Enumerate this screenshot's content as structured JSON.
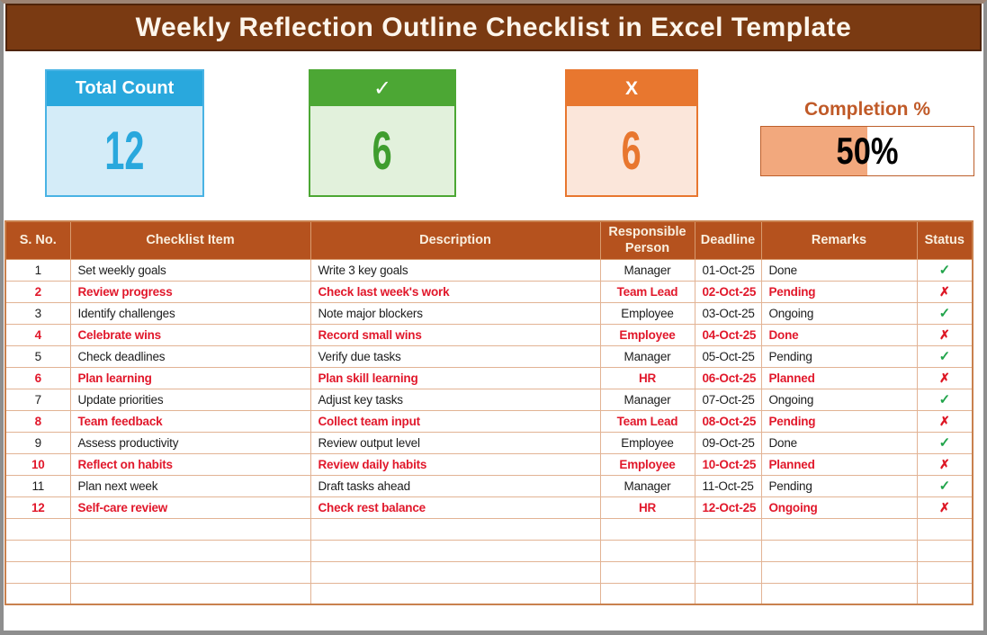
{
  "title": "Weekly Reflection Outline Checklist in Excel Template",
  "summary_cards": [
    {
      "id": "total",
      "label": "Total Count",
      "value": "12",
      "header_color": "#29a8dd",
      "body_color": "#d4ecf8",
      "value_color": "#29a8dd"
    },
    {
      "id": "done",
      "label": "✓",
      "value": "6",
      "header_color": "#4ca734",
      "body_color": "#e2f1dc",
      "value_color": "#3f9d2e"
    },
    {
      "id": "not_done",
      "label": "X",
      "value": "6",
      "header_color": "#e8772f",
      "body_color": "#fbe6da",
      "value_color": "#e8772f"
    }
  ],
  "completion": {
    "label": "Completion %",
    "value": "50%",
    "percent": 50,
    "fill_color": "#f2a87d",
    "label_color": "#c05a28"
  },
  "table": {
    "columns": [
      {
        "label": "S. No."
      },
      {
        "label": "Checklist Item"
      },
      {
        "label": "Description"
      },
      {
        "label": "Responsible Person"
      },
      {
        "label": "Deadline"
      },
      {
        "label": "Remarks"
      },
      {
        "label": "Status"
      }
    ],
    "status_icons": {
      "done": "✓",
      "not_done": "✗"
    },
    "status_colors": {
      "done": "#21a44b",
      "not_done": "#dd1523"
    },
    "rows": [
      {
        "sno": "1",
        "item": "Set weekly goals",
        "description": "Write 3 key goals",
        "person": "Manager",
        "deadline": "01-Oct-25",
        "remarks": "Done",
        "status": "done",
        "emphasized": false
      },
      {
        "sno": "2",
        "item": "Review progress",
        "description": "Check last week's work",
        "person": "Team Lead",
        "deadline": "02-Oct-25",
        "remarks": "Pending",
        "status": "not_done",
        "emphasized": true
      },
      {
        "sno": "3",
        "item": "Identify challenges",
        "description": "Note major blockers",
        "person": "Employee",
        "deadline": "03-Oct-25",
        "remarks": "Ongoing",
        "status": "done",
        "emphasized": false
      },
      {
        "sno": "4",
        "item": "Celebrate wins",
        "description": "Record small wins",
        "person": "Employee",
        "deadline": "04-Oct-25",
        "remarks": "Done",
        "status": "not_done",
        "emphasized": true
      },
      {
        "sno": "5",
        "item": "Check deadlines",
        "description": "Verify due tasks",
        "person": "Manager",
        "deadline": "05-Oct-25",
        "remarks": "Pending",
        "status": "done",
        "emphasized": false
      },
      {
        "sno": "6",
        "item": "Plan learning",
        "description": "Plan skill learning",
        "person": "HR",
        "deadline": "06-Oct-25",
        "remarks": "Planned",
        "status": "not_done",
        "emphasized": true
      },
      {
        "sno": "7",
        "item": "Update priorities",
        "description": "Adjust key tasks",
        "person": "Manager",
        "deadline": "07-Oct-25",
        "remarks": "Ongoing",
        "status": "done",
        "emphasized": false
      },
      {
        "sno": "8",
        "item": "Team feedback",
        "description": "Collect team input",
        "person": "Team Lead",
        "deadline": "08-Oct-25",
        "remarks": "Pending",
        "status": "not_done",
        "emphasized": true
      },
      {
        "sno": "9",
        "item": "Assess productivity",
        "description": "Review output level",
        "person": "Employee",
        "deadline": "09-Oct-25",
        "remarks": "Done",
        "status": "done",
        "emphasized": false
      },
      {
        "sno": "10",
        "item": "Reflect on habits",
        "description": "Review daily habits",
        "person": "Employee",
        "deadline": "10-Oct-25",
        "remarks": "Planned",
        "status": "not_done",
        "emphasized": true
      },
      {
        "sno": "11",
        "item": "Plan next week",
        "description": "Draft tasks ahead",
        "person": "Manager",
        "deadline": "11-Oct-25",
        "remarks": "Pending",
        "status": "done",
        "emphasized": false
      },
      {
        "sno": "12",
        "item": "Self-care review",
        "description": "Check rest balance",
        "person": "HR",
        "deadline": "12-Oct-25",
        "remarks": "Ongoing",
        "status": "not_done",
        "emphasized": true
      }
    ],
    "empty_row_count": 4
  },
  "colors": {
    "title_bar": "#7a3a12",
    "table_header": "#b5521e",
    "grid_line": "#e2b394",
    "emphasized_text": "#e1182b",
    "window_frame": "#8e8e8e"
  }
}
